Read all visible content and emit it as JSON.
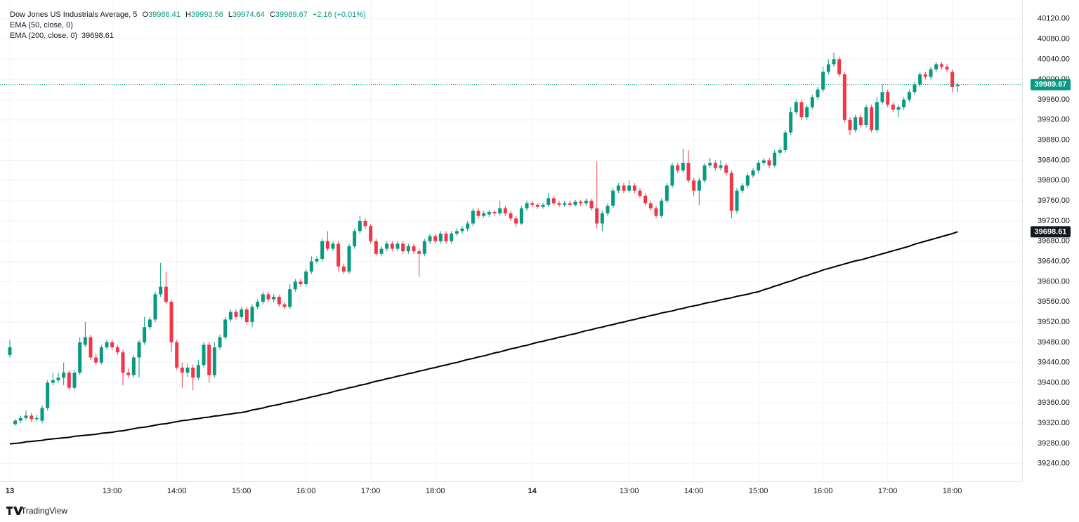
{
  "chart_data": {
    "type": "candlestick",
    "title": "Dow Jones US Industrials Average, 5",
    "ohlc_labels": [
      "O",
      "H",
      "L",
      "C"
    ],
    "change": "+2.16 (+0.01%)",
    "ema50_label": "EMA (50, close, 0)",
    "watermark": "TradingView",
    "up_color": "#089981",
    "down_color": "#f23645",
    "grid": true,
    "categories": [
      "13",
      null,
      null,
      null,
      null,
      null,
      null,
      null,
      null,
      null,
      null,
      null,
      null,
      null,
      null,
      null,
      null,
      null,
      null,
      "13:00",
      null,
      null,
      null,
      null,
      null,
      null,
      null,
      null,
      null,
      null,
      null,
      "14:00",
      null,
      null,
      null,
      null,
      null,
      null,
      null,
      null,
      null,
      null,
      null,
      "15:00",
      null,
      null,
      null,
      null,
      null,
      null,
      null,
      null,
      null,
      null,
      null,
      "16:00",
      null,
      null,
      null,
      null,
      null,
      null,
      null,
      null,
      null,
      null,
      null,
      "17:00",
      null,
      null,
      null,
      null,
      null,
      null,
      null,
      null,
      null,
      null,
      null,
      "18:00",
      null,
      null,
      null,
      null,
      null,
      null,
      null,
      null,
      null,
      null,
      null,
      null,
      null,
      null,
      null,
      null,
      null,
      "14",
      null,
      null,
      null,
      null,
      null,
      null,
      null,
      null,
      null,
      null,
      null,
      null,
      null,
      null,
      null,
      null,
      null,
      "13:00",
      null,
      null,
      null,
      null,
      null,
      null,
      null,
      null,
      null,
      null,
      null,
      "14:00",
      null,
      null,
      null,
      null,
      null,
      null,
      null,
      null,
      null,
      null,
      null,
      "15:00",
      null,
      null,
      null,
      null,
      null,
      null,
      null,
      null,
      null,
      null,
      null,
      "16:00",
      null,
      null,
      null,
      null,
      null,
      null,
      null,
      null,
      null,
      null,
      null,
      "17:00",
      null,
      null,
      null,
      null,
      null,
      null,
      null,
      null,
      null,
      null,
      null,
      "18:00",
      null
    ],
    "open": [
      39455,
      39318,
      39325,
      39330,
      39335,
      39328,
      39325,
      39350,
      39400,
      39405,
      39410,
      39420,
      39390,
      39420,
      39475,
      39490,
      39450,
      39440,
      39470,
      39480,
      39470,
      39460,
      39420,
      39415,
      39450,
      39480,
      39510,
      39525,
      39575,
      39590,
      39560,
      39480,
      39430,
      39420,
      39430,
      39410,
      39435,
      39475,
      39415,
      39470,
      39490,
      39525,
      39540,
      39530,
      39545,
      39520,
      39550,
      39560,
      39575,
      39565,
      39570,
      39555,
      39550,
      39585,
      39600,
      39595,
      39620,
      39640,
      39645,
      39680,
      39665,
      39675,
      39630,
      39620,
      39670,
      39700,
      39720,
      39710,
      39680,
      39655,
      39665,
      39675,
      39665,
      39675,
      39660,
      39670,
      39660,
      39655,
      39680,
      39690,
      39680,
      39695,
      39680,
      39695,
      39700,
      39705,
      39715,
      39740,
      39730,
      39733,
      39738,
      39735,
      39745,
      39735,
      39725,
      39715,
      39745,
      39755,
      39752,
      39748,
      39752,
      39765,
      39755,
      39752,
      39755,
      39752,
      39758,
      39755,
      39760,
      39745,
      39715,
      39735,
      39750,
      39780,
      39790,
      39780,
      39790,
      39780,
      39770,
      39755,
      39745,
      39730,
      39760,
      39790,
      39830,
      39820,
      39835,
      39800,
      39780,
      39800,
      39830,
      39835,
      39825,
      39830,
      39815,
      39740,
      39780,
      39790,
      39810,
      39820,
      39835,
      39840,
      39830,
      39855,
      39860,
      39895,
      39935,
      39955,
      39925,
      39945,
      39965,
      39980,
      40015,
      40030,
      40040,
      40010,
      39920,
      39900,
      39925,
      39910,
      39945,
      39900,
      39955,
      39975,
      39950,
      39940,
      39945,
      39960,
      39975,
      39990,
      40010,
      40005,
      40020,
      40030,
      40025,
      40015,
      39986.41
    ],
    "high": [
      39485,
      39328,
      39335,
      39345,
      39340,
      39336,
      39355,
      39405,
      39420,
      39420,
      39440,
      39425,
      39425,
      39490,
      39520,
      39495,
      39458,
      39475,
      39485,
      39485,
      39475,
      39465,
      39428,
      39455,
      39485,
      39530,
      39530,
      39580,
      39637,
      39620,
      39565,
      39485,
      39440,
      39438,
      39436,
      39445,
      39480,
      39480,
      39480,
      39495,
      39530,
      39545,
      39545,
      39550,
      39550,
      39555,
      39565,
      39580,
      39580,
      39575,
      39574,
      39560,
      39595,
      39605,
      39606,
      39625,
      39650,
      39650,
      39685,
      39700,
      39680,
      39680,
      39636,
      39675,
      39705,
      39730,
      39725,
      39714,
      39685,
      39670,
      39680,
      39680,
      39680,
      39680,
      39675,
      39675,
      39665,
      39685,
      39695,
      39695,
      39700,
      39700,
      39700,
      39705,
      39710,
      39720,
      39745,
      39745,
      39740,
      39742,
      39742,
      39760,
      39750,
      39740,
      39730,
      39750,
      39760,
      39760,
      39756,
      39756,
      39775,
      39770,
      39760,
      39760,
      39760,
      39762,
      39762,
      39765,
      39764,
      39838,
      39740,
      39755,
      39785,
      39795,
      39795,
      39800,
      39795,
      39785,
      39775,
      39760,
      39750,
      39765,
      39795,
      39835,
      39835,
      39863,
      39860,
      39805,
      39805,
      39835,
      39845,
      39840,
      39840,
      39835,
      39820,
      39785,
      39795,
      39815,
      39825,
      39840,
      39845,
      39845,
      39860,
      39865,
      39900,
      39945,
      39960,
      39960,
      39950,
      39970,
      39985,
      40025,
      40040,
      40053,
      40045,
      40015,
      39925,
      39930,
      39930,
      39950,
      39950,
      39965,
      39990,
      39980,
      39955,
      39950,
      39965,
      39980,
      39995,
      40015,
      40015,
      40025,
      40035,
      40035,
      40030,
      40020,
      39993.56
    ],
    "low": [
      39450,
      39315,
      39320,
      39326,
      39322,
      39324,
      39320,
      39345,
      39395,
      39400,
      39395,
      39385,
      39386,
      39415,
      39470,
      39445,
      39435,
      39436,
      39465,
      39465,
      39455,
      39395,
      39410,
      39410,
      39410,
      39475,
      39505,
      39520,
      39570,
      39555,
      39460,
      39425,
      39390,
      39412,
      39385,
      39405,
      39430,
      39400,
      39410,
      39465,
      39485,
      39520,
      39525,
      39526,
      39515,
      39510,
      39545,
      39555,
      39560,
      39560,
      39550,
      39545,
      39546,
      39580,
      39590,
      39590,
      39615,
      39636,
      39640,
      39660,
      39660,
      39620,
      39615,
      39615,
      39665,
      39695,
      39705,
      39675,
      39650,
      39650,
      39660,
      39660,
      39660,
      39655,
      39655,
      39655,
      39610,
      39650,
      39675,
      39675,
      39675,
      39675,
      39675,
      39690,
      39695,
      39700,
      39710,
      39725,
      39726,
      39728,
      39730,
      39730,
      39730,
      39720,
      39708,
      39712,
      39740,
      39748,
      39744,
      39744,
      39748,
      39750,
      39748,
      39748,
      39748,
      39748,
      39750,
      39750,
      39740,
      39705,
      39700,
      39730,
      39745,
      39775,
      39775,
      39776,
      39775,
      39765,
      39750,
      39740,
      39725,
      39726,
      39755,
      39785,
      39815,
      39815,
      39795,
      39770,
      39752,
      39795,
      39825,
      39820,
      39820,
      39810,
      39725,
      39735,
      39775,
      39785,
      39805,
      39815,
      39830,
      39825,
      39826,
      39850,
      39855,
      39890,
      39930,
      39920,
      39920,
      39940,
      39960,
      39975,
      40010,
      40025,
      40005,
      39915,
      39890,
      39895,
      39905,
      39905,
      39895,
      39895,
      39950,
      39945,
      39935,
      39925,
      39940,
      39955,
      39970,
      39985,
      40000,
      40000,
      40015,
      40020,
      40015,
      39975,
      39974.64
    ],
    "close": [
      39470,
      39325,
      39330,
      39335,
      39328,
      39330,
      39350,
      39400,
      39405,
      39410,
      39420,
      39390,
      39420,
      39480,
      39490,
      39450,
      39440,
      39470,
      39480,
      39470,
      39460,
      39420,
      39415,
      39450,
      39480,
      39510,
      39525,
      39575,
      39590,
      39560,
      39480,
      39430,
      39420,
      39430,
      39410,
      39435,
      39475,
      39415,
      39470,
      39490,
      39525,
      39540,
      39530,
      39545,
      39520,
      39550,
      39560,
      39575,
      39565,
      39570,
      39555,
      39550,
      39585,
      39600,
      39595,
      39620,
      39640,
      39645,
      39680,
      39665,
      39675,
      39630,
      39620,
      39670,
      39700,
      39720,
      39710,
      39680,
      39655,
      39665,
      39675,
      39665,
      39675,
      39660,
      39670,
      39660,
      39655,
      39680,
      39690,
      39680,
      39695,
      39680,
      39695,
      39700,
      39705,
      39715,
      39740,
      39730,
      39735,
      39738,
      39735,
      39745,
      39735,
      39725,
      39715,
      39745,
      39755,
      39752,
      39748,
      39752,
      39765,
      39755,
      39752,
      39755,
      39752,
      39758,
      39755,
      39760,
      39745,
      39715,
      39735,
      39750,
      39780,
      39790,
      39780,
      39790,
      39780,
      39770,
      39755,
      39745,
      39730,
      39760,
      39790,
      39830,
      39820,
      39835,
      39800,
      39780,
      39800,
      39830,
      39835,
      39825,
      39830,
      39815,
      39740,
      39780,
      39790,
      39810,
      39820,
      39835,
      39840,
      39830,
      39855,
      39860,
      39895,
      39935,
      39955,
      39925,
      39945,
      39965,
      39980,
      40015,
      40030,
      40040,
      40010,
      39920,
      39900,
      39925,
      39910,
      39945,
      39900,
      39955,
      39975,
      39950,
      39940,
      39945,
      39960,
      39975,
      39990,
      40010,
      40005,
      40020,
      40030,
      40025,
      40020,
      39985,
      39989.67
    ],
    "series": [
      {
        "name": "EMA (200, close, 0)",
        "color": "#000000",
        "values": [
          39279,
          39280,
          39281,
          39283,
          39284,
          39285,
          39286,
          39288,
          39289,
          39290,
          39291,
          39292,
          39294,
          39295,
          39296,
          39297,
          39298,
          39300,
          39301,
          39302,
          39304,
          39305,
          39307,
          39309,
          39311,
          39312,
          39314,
          39316,
          39318,
          39319,
          39321,
          39323,
          39325,
          39326,
          39328,
          39329,
          39331,
          39332,
          39334,
          39335,
          39337,
          39338,
          39340,
          39341,
          39343,
          39346,
          39348,
          39350,
          39353,
          39355,
          39357,
          39360,
          39362,
          39364,
          39367,
          39369,
          39372,
          39374,
          39377,
          39379,
          39382,
          39385,
          39387,
          39390,
          39392,
          39395,
          39397,
          39400,
          39403,
          39405,
          39408,
          39410,
          39413,
          39415,
          39418,
          39420,
          39423,
          39425,
          39428,
          39430,
          39433,
          39435,
          39438,
          39440,
          39443,
          39446,
          39448,
          39451,
          39453,
          39456,
          39459,
          39461,
          39464,
          39467,
          39469,
          39472,
          39474,
          39477,
          39480,
          39482,
          39485,
          39487,
          39490,
          39492,
          39495,
          39497,
          39500,
          39503,
          39505,
          39508,
          39510,
          39513,
          39515,
          39518,
          39520,
          39523,
          39525,
          39528,
          39530,
          39533,
          39535,
          39538,
          39540,
          39542,
          39545,
          39547,
          39550,
          39552,
          39554,
          39557,
          39559,
          39561,
          39564,
          39566,
          39568,
          39571,
          39573,
          39575,
          39578,
          39580,
          39584,
          39587,
          39591,
          39594,
          39598,
          39601,
          39605,
          39609,
          39612,
          39616,
          39619,
          39623,
          39626,
          39629,
          39632,
          39635,
          39638,
          39641,
          39643,
          39646,
          39649,
          39652,
          39655,
          39658,
          39661,
          39664,
          39667,
          39670,
          39674,
          39677,
          39680,
          39683,
          39686,
          39689,
          39692,
          39695,
          39698.61
        ]
      }
    ],
    "ylim": [
      39205,
      40146
    ],
    "yticks": [
      {
        "value": 39240,
        "label": "39240.00"
      },
      {
        "value": 39280,
        "label": "39280.00"
      },
      {
        "value": 39320,
        "label": "39320.00"
      },
      {
        "value": 39360,
        "label": "39360.00"
      },
      {
        "value": 39400,
        "label": "39400.00"
      },
      {
        "value": 39440,
        "label": "39440.00"
      },
      {
        "value": 39480,
        "label": "39480.00"
      },
      {
        "value": 39520,
        "label": "39520.00"
      },
      {
        "value": 39560,
        "label": "39560.00"
      },
      {
        "value": 39600,
        "label": "39600.00"
      },
      {
        "value": 39640,
        "label": "39640.00"
      },
      {
        "value": 39680,
        "label": "39680.00"
      },
      {
        "value": 39720,
        "label": "39720.00"
      },
      {
        "value": 39760,
        "label": "39760.00"
      },
      {
        "value": 39800,
        "label": "39800.00"
      },
      {
        "value": 39840,
        "label": "39840.00"
      },
      {
        "value": 39880,
        "label": "39880.00"
      },
      {
        "value": 39920,
        "label": "39920.00"
      },
      {
        "value": 39960,
        "label": "39960.00"
      },
      {
        "value": 40000,
        "label": "40000.00"
      },
      {
        "value": 40040,
        "label": "40040.00"
      },
      {
        "value": 40080,
        "label": "40080.00"
      },
      {
        "value": 40120,
        "label": "40120.00"
      }
    ]
  }
}
